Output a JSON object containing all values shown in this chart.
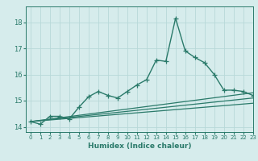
{
  "xlabel": "Humidex (Indice chaleur)",
  "bg_color": "#d6ecec",
  "grid_color": "#b8d8d8",
  "line_color": "#2a7a6a",
  "xlim": [
    -0.5,
    23
  ],
  "ylim": [
    13.8,
    18.6
  ],
  "yticks": [
    14,
    15,
    16,
    17,
    18
  ],
  "xticks": [
    0,
    1,
    2,
    3,
    4,
    5,
    6,
    7,
    8,
    9,
    10,
    11,
    12,
    13,
    14,
    15,
    16,
    17,
    18,
    19,
    20,
    21,
    22,
    23
  ],
  "series": [
    {
      "x": [
        0,
        1,
        2,
        3,
        4,
        5,
        6,
        7,
        8,
        9,
        10,
        11,
        12,
        13,
        14,
        15,
        16,
        17,
        18,
        19,
        20,
        21,
        22,
        23
      ],
      "y": [
        14.2,
        14.1,
        14.4,
        14.4,
        14.3,
        14.75,
        15.15,
        15.35,
        15.2,
        15.1,
        15.35,
        15.6,
        15.8,
        16.55,
        16.5,
        18.15,
        16.9,
        16.65,
        16.45,
        16.0,
        15.4,
        15.4,
        15.35,
        15.2
      ],
      "marker": "+",
      "linewidth": 1.0,
      "markersize": 4,
      "zorder": 3
    },
    {
      "x": [
        0,
        23
      ],
      "y": [
        14.2,
        15.3
      ],
      "marker": null,
      "linewidth": 0.9,
      "markersize": 0,
      "zorder": 2
    },
    {
      "x": [
        0,
        23
      ],
      "y": [
        14.2,
        15.1
      ],
      "marker": null,
      "linewidth": 0.9,
      "markersize": 0,
      "zorder": 2
    },
    {
      "x": [
        0,
        23
      ],
      "y": [
        14.2,
        14.9
      ],
      "marker": null,
      "linewidth": 0.9,
      "markersize": 0,
      "zorder": 2
    }
  ]
}
